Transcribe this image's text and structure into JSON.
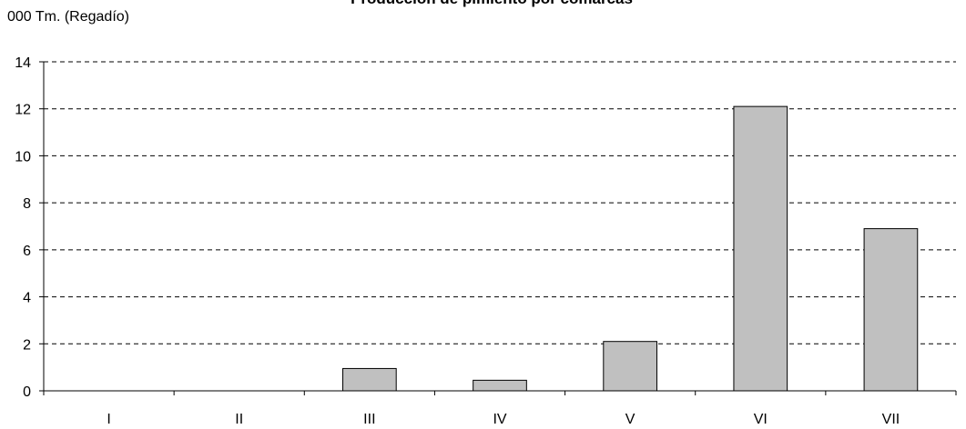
{
  "chart_data": {
    "type": "bar",
    "title": "Producción de pimiento por comarcas",
    "y_label": "000 Tm. (Regadío)",
    "categories": [
      "I",
      "II",
      "III",
      "IV",
      "V",
      "VI",
      "VII"
    ],
    "values": [
      0,
      0,
      0.95,
      0.45,
      2.1,
      12.1,
      6.9
    ],
    "color": "#c0c0c0",
    "ylim": [
      0,
      14
    ],
    "yticks": [
      0,
      2,
      4,
      6,
      8,
      10,
      12,
      14
    ],
    "grid": true
  }
}
